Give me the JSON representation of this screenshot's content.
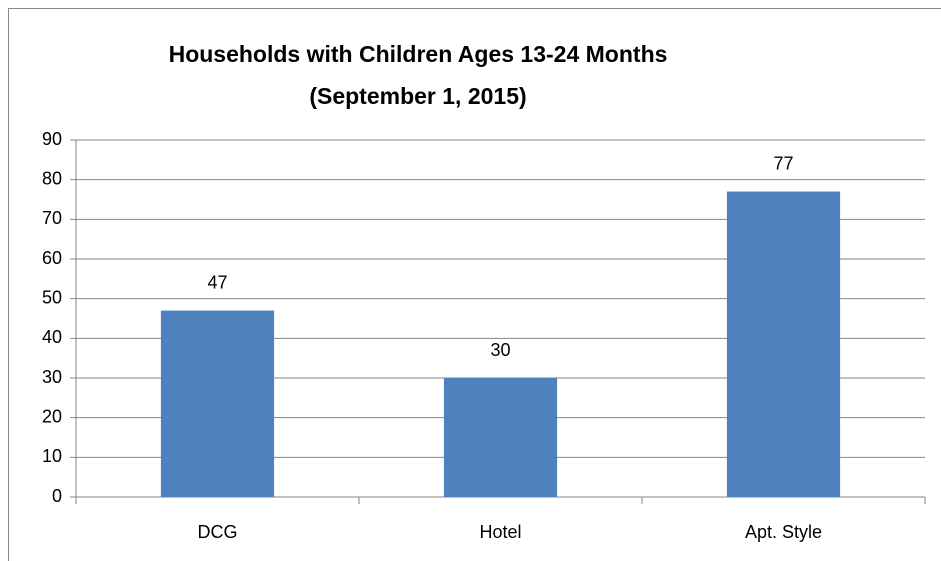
{
  "chart_data": {
    "type": "bar",
    "title": "Households with Children Ages 13-24 Months",
    "subtitle": "(September 1, 2015)",
    "categories": [
      "DCG",
      "Hotel",
      "Apt. Style"
    ],
    "values": [
      47,
      30,
      77
    ],
    "color": "#4f81bd",
    "ylim": [
      0,
      90
    ],
    "yticks": [
      0,
      10,
      20,
      30,
      40,
      50,
      60,
      70,
      80,
      90
    ],
    "grid": true
  }
}
